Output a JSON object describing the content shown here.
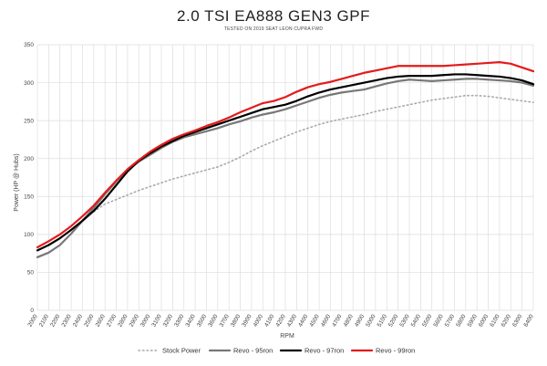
{
  "chart_data": {
    "type": "line",
    "title": "2.0 TSI EA888 GEN3 GPF",
    "subtitle": "TESTED ON 2019 SEAT LEON CUPRA FWD",
    "xlabel": "RPM",
    "ylabel": "Power (HP @ Hubs)",
    "ylim": [
      0,
      350
    ],
    "yticks": [
      0,
      50,
      100,
      150,
      200,
      250,
      300,
      350
    ],
    "grid": true,
    "legend": "bottom",
    "x": [
      2000,
      2100,
      2200,
      2300,
      2400,
      2500,
      2600,
      2700,
      2800,
      2900,
      3000,
      3100,
      3200,
      3300,
      3400,
      3500,
      3600,
      3700,
      3800,
      3900,
      4000,
      4100,
      4200,
      4300,
      4400,
      4500,
      4600,
      4700,
      4800,
      4900,
      5000,
      5100,
      5200,
      5300,
      5400,
      5500,
      5600,
      5700,
      5800,
      5900,
      6000,
      6100,
      6200,
      6300,
      6400
    ],
    "series": [
      {
        "name": "Stock Power",
        "color": "#aaaaaa",
        "style": "dotted",
        "values": [
          null,
          null,
          null,
          null,
          null,
          130,
          140,
          146,
          152,
          158,
          163,
          168,
          173,
          177,
          181,
          185,
          189,
          195,
          202,
          210,
          217,
          223,
          229,
          235,
          240,
          245,
          249,
          252,
          255,
          258,
          262,
          265,
          268,
          271,
          274,
          277,
          279,
          281,
          283,
          283,
          282,
          280,
          278,
          276,
          274
        ]
      },
      {
        "name": "Revo - 95ron",
        "color": "#777777",
        "style": "solid",
        "values": [
          70,
          76,
          86,
          101,
          118,
          135,
          153,
          170,
          185,
          196,
          205,
          214,
          222,
          228,
          232,
          236,
          240,
          245,
          249,
          254,
          258,
          261,
          265,
          270,
          275,
          280,
          284,
          287,
          289,
          291,
          295,
          299,
          302,
          304,
          303,
          302,
          303,
          304,
          305,
          305,
          304,
          303,
          302,
          300,
          296
        ]
      },
      {
        "name": "Revo - 97ron",
        "color": "#000000",
        "style": "solid",
        "values": [
          79,
          86,
          95,
          106,
          118,
          131,
          147,
          165,
          183,
          197,
          207,
          216,
          223,
          230,
          235,
          240,
          245,
          250,
          255,
          260,
          265,
          268,
          271,
          276,
          282,
          287,
          291,
          294,
          297,
          300,
          303,
          306,
          308,
          309,
          309,
          309,
          310,
          311,
          311,
          310,
          309,
          308,
          306,
          303,
          298
        ]
      },
      {
        "name": "Revo - 99ron",
        "color": "#e31b1b",
        "style": "solid",
        "values": [
          83,
          91,
          100,
          111,
          124,
          138,
          155,
          171,
          186,
          198,
          209,
          218,
          226,
          232,
          237,
          243,
          248,
          254,
          261,
          267,
          273,
          276,
          281,
          288,
          294,
          298,
          301,
          305,
          309,
          313,
          316,
          319,
          322,
          322,
          322,
          322,
          322,
          323,
          324,
          325,
          326,
          327,
          325,
          320,
          315
        ]
      }
    ]
  }
}
